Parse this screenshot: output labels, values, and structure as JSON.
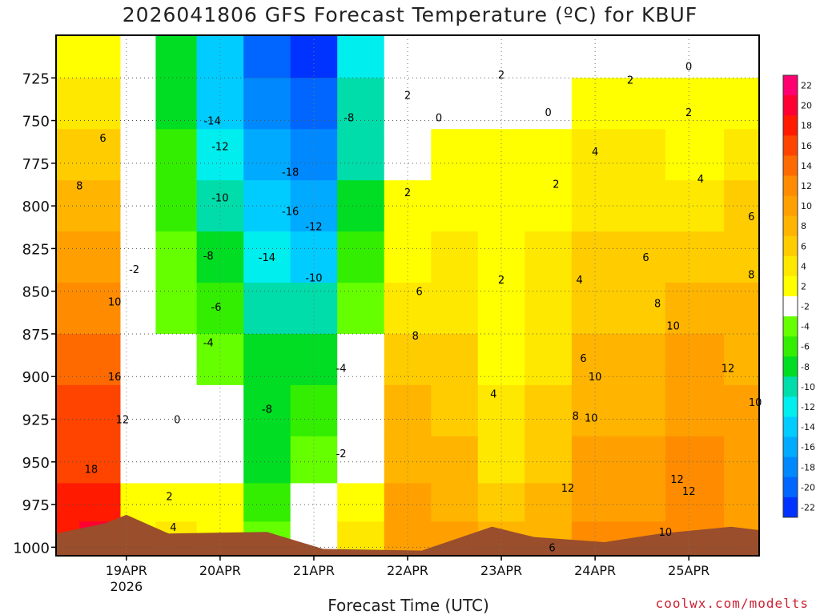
{
  "chart_data": {
    "type": "heatmap",
    "title": "2026041806 GFS Forecast Temperature (ºC) for KBUF",
    "xlabel": "Forecast Time (UTC)",
    "ylabel": "",
    "x_range": [
      "2026-04-18T06Z",
      "2026-04-25T18Z"
    ],
    "x_ticks": [
      {
        "label": "19APR",
        "sublabel": "2026",
        "date": "2026-04-19T00Z"
      },
      {
        "label": "20APR",
        "sublabel": "",
        "date": "2026-04-20T00Z"
      },
      {
        "label": "21APR",
        "sublabel": "",
        "date": "2026-04-21T00Z"
      },
      {
        "label": "22APR",
        "sublabel": "",
        "date": "2026-04-22T00Z"
      },
      {
        "label": "23APR",
        "sublabel": "",
        "date": "2026-04-23T00Z"
      },
      {
        "label": "24APR",
        "sublabel": "",
        "date": "2026-04-24T00Z"
      },
      {
        "label": "25APR",
        "sublabel": "",
        "date": "2026-04-25T00Z"
      }
    ],
    "y_range": [
      1005,
      700
    ],
    "y_ticks": [
      725,
      750,
      775,
      800,
      825,
      850,
      875,
      900,
      925,
      950,
      975,
      1000
    ],
    "grid": true,
    "colorbar": {
      "levels": [
        22,
        20,
        18,
        16,
        14,
        12,
        10,
        8,
        6,
        4,
        2,
        -2,
        -4,
        -6,
        -8,
        -10,
        -12,
        -14,
        -16,
        -18,
        -20,
        -22
      ],
      "colors": [
        "#ff0070",
        "#ff0033",
        "#ff1a00",
        "#ff4400",
        "#ff6a00",
        "#ff8c00",
        "#ffa000",
        "#ffb400",
        "#ffcc00",
        "#ffe800",
        "#ffff00",
        "#ffffff",
        "#66ff00",
        "#33ee00",
        "#00dd22",
        "#00ddaa",
        "#00eeee",
        "#00ccff",
        "#00aaff",
        "#0088ff",
        "#0066ff",
        "#0033ff"
      ]
    },
    "columns": [
      {
        "date": "2026-04-18T06Z",
        "temps": [
          3,
          5,
          7,
          9,
          11,
          13,
          15,
          16,
          17,
          18,
          19
        ]
      },
      {
        "date": "2026-04-18T18Z",
        "temps": [
          3,
          5,
          7,
          9,
          11,
          13,
          14,
          16,
          17,
          18,
          21
        ]
      },
      {
        "date": "2026-04-19T03Z",
        "temps": [
          1,
          1,
          0,
          -1,
          -2,
          -1,
          0,
          1,
          1,
          2,
          3
        ]
      },
      {
        "date": "2026-04-19T12Z",
        "temps": [
          -9,
          -8,
          -7,
          -6,
          -5,
          -4,
          -3,
          -2,
          1,
          2,
          4
        ]
      },
      {
        "date": "2026-04-20T00Z",
        "temps": [
          -15,
          -14,
          -13,
          -11,
          -9,
          -7,
          -5,
          -3,
          -1,
          2,
          3
        ]
      },
      {
        "date": "2026-04-20T12Z",
        "temps": [
          -20,
          -18,
          -16,
          -14,
          -13,
          -11,
          -9,
          -8,
          -8,
          -7,
          -5
        ]
      },
      {
        "date": "2026-04-21T00Z",
        "temps": [
          -22,
          -20,
          -18,
          -16,
          -14,
          -11,
          -8,
          -6,
          -4,
          -2,
          1
        ]
      },
      {
        "date": "2026-04-21T12Z",
        "temps": [
          -12,
          -11,
          -10,
          -8,
          -6,
          -5,
          -3,
          -1,
          1,
          2,
          4
        ]
      },
      {
        "date": "2026-04-22T00Z",
        "temps": [
          -3,
          -1,
          1,
          2,
          3,
          5,
          7,
          8,
          9,
          10,
          11
        ]
      },
      {
        "date": "2026-04-22T12Z",
        "temps": [
          -2,
          0,
          2,
          3,
          4,
          5,
          6,
          7,
          8,
          9,
          10
        ]
      },
      {
        "date": "2026-04-23T00Z",
        "temps": [
          0,
          1,
          2,
          2,
          3,
          3,
          2,
          4,
          5,
          7,
          8
        ]
      },
      {
        "date": "2026-04-23T12Z",
        "temps": [
          0,
          1,
          2,
          3,
          4,
          4,
          5,
          6,
          7,
          8,
          9
        ]
      },
      {
        "date": "2026-04-24T00Z",
        "temps": [
          1,
          2,
          4,
          5,
          6,
          7,
          8,
          9,
          10,
          11,
          12
        ]
      },
      {
        "date": "2026-04-24T12Z",
        "temps": [
          1,
          2,
          4,
          5,
          6,
          7,
          8,
          9,
          10,
          11,
          12
        ]
      },
      {
        "date": "2026-04-25T00Z",
        "temps": [
          0,
          2,
          3,
          5,
          7,
          8,
          10,
          11,
          12,
          12,
          12
        ]
      },
      {
        "date": "2026-04-25T18Z",
        "temps": [
          1,
          3,
          4,
          6,
          7,
          8,
          9,
          10,
          11,
          11,
          11
        ]
      }
    ],
    "column_pressures": [
      710,
      740,
      770,
      800,
      830,
      860,
      890,
      920,
      950,
      975,
      995
    ],
    "contour_labels": [
      {
        "text": "6",
        "date": "2026-04-18T18Z",
        "p": 760
      },
      {
        "text": "8",
        "date": "2026-04-18T12Z",
        "p": 788
      },
      {
        "text": "10",
        "date": "2026-04-18T21Z",
        "p": 856
      },
      {
        "text": "16",
        "date": "2026-04-18T21Z",
        "p": 900
      },
      {
        "text": "12",
        "date": "2026-04-18T23Z",
        "p": 925
      },
      {
        "text": "18",
        "date": "2026-04-18T15Z",
        "p": 954
      },
      {
        "text": "-2",
        "date": "2026-04-19T02Z",
        "p": 837
      },
      {
        "text": "0",
        "date": "2026-04-19T13Z",
        "p": 925
      },
      {
        "text": "2",
        "date": "2026-04-19T11Z",
        "p": 970
      },
      {
        "text": "4",
        "date": "2026-04-19T12Z",
        "p": 988
      },
      {
        "text": "-14",
        "date": "2026-04-19T22Z",
        "p": 750
      },
      {
        "text": "-12",
        "date": "2026-04-20T00Z",
        "p": 765
      },
      {
        "text": "-10",
        "date": "2026-04-20T00Z",
        "p": 795
      },
      {
        "text": "-8",
        "date": "2026-04-19T21Z",
        "p": 829
      },
      {
        "text": "-6",
        "date": "2026-04-19T23Z",
        "p": 859
      },
      {
        "text": "-4",
        "date": "2026-04-19T21Z",
        "p": 880
      },
      {
        "text": "-18",
        "date": "2026-04-20T18Z",
        "p": 780
      },
      {
        "text": "-16",
        "date": "2026-04-20T18Z",
        "p": 803
      },
      {
        "text": "-14",
        "date": "2026-04-20T12Z",
        "p": 830
      },
      {
        "text": "-12",
        "date": "2026-04-21T00Z",
        "p": 812
      },
      {
        "text": "-10",
        "date": "2026-04-21T00Z",
        "p": 842
      },
      {
        "text": "-8",
        "date": "2026-04-21T09Z",
        "p": 748
      },
      {
        "text": "-8",
        "date": "2026-04-20T12Z",
        "p": 919
      },
      {
        "text": "-4",
        "date": "2026-04-21T07Z",
        "p": 895
      },
      {
        "text": "-2",
        "date": "2026-04-21T07Z",
        "p": 945
      },
      {
        "text": "2",
        "date": "2026-04-22T00Z",
        "p": 735
      },
      {
        "text": "0",
        "date": "2026-04-22T08Z",
        "p": 748
      },
      {
        "text": "2",
        "date": "2026-04-22T00Z",
        "p": 792
      },
      {
        "text": "6",
        "date": "2026-04-22T03Z",
        "p": 850
      },
      {
        "text": "8",
        "date": "2026-04-22T02Z",
        "p": 876
      },
      {
        "text": "2",
        "date": "2026-04-23T00Z",
        "p": 843
      },
      {
        "text": "4",
        "date": "2026-04-22T22Z",
        "p": 910
      },
      {
        "text": "2",
        "date": "2026-04-23T00Z",
        "p": 723
      },
      {
        "text": "0",
        "date": "2026-04-23T12Z",
        "p": 745
      },
      {
        "text": "2",
        "date": "2026-04-23T14Z",
        "p": 787
      },
      {
        "text": "4",
        "date": "2026-04-23T20Z",
        "p": 843
      },
      {
        "text": "6",
        "date": "2026-04-23T21Z",
        "p": 889
      },
      {
        "text": "8",
        "date": "2026-04-23T19Z",
        "p": 923
      },
      {
        "text": "10",
        "date": "2026-04-23T23Z",
        "p": 924
      },
      {
        "text": "12",
        "date": "2026-04-23T17Z",
        "p": 965
      },
      {
        "text": "6",
        "date": "2026-04-23T13Z",
        "p": 1000
      },
      {
        "text": "2",
        "date": "2026-04-24T09Z",
        "p": 726
      },
      {
        "text": "0",
        "date": "2026-04-25T00Z",
        "p": 718
      },
      {
        "text": "2",
        "date": "2026-04-25T00Z",
        "p": 745
      },
      {
        "text": "4",
        "date": "2026-04-24T00Z",
        "p": 768
      },
      {
        "text": "4",
        "date": "2026-04-25T03Z",
        "p": 784
      },
      {
        "text": "6",
        "date": "2026-04-24T13Z",
        "p": 830
      },
      {
        "text": "6",
        "date": "2026-04-25T16Z",
        "p": 806
      },
      {
        "text": "8",
        "date": "2026-04-24T16Z",
        "p": 857
      },
      {
        "text": "8",
        "date": "2026-04-25T16Z",
        "p": 840
      },
      {
        "text": "10",
        "date": "2026-04-24T20Z",
        "p": 870
      },
      {
        "text": "10",
        "date": "2026-04-24T00Z",
        "p": 900
      },
      {
        "text": "12",
        "date": "2026-04-25T10Z",
        "p": 895
      },
      {
        "text": "10",
        "date": "2026-04-25T17Z",
        "p": 915
      },
      {
        "text": "12",
        "date": "2026-04-24T21Z",
        "p": 960
      },
      {
        "text": "12",
        "date": "2026-04-25T00Z",
        "p": 967
      },
      {
        "text": "10",
        "date": "2026-04-24T18Z",
        "p": 991
      }
    ]
  },
  "credit": "coolwx.com/modelts"
}
